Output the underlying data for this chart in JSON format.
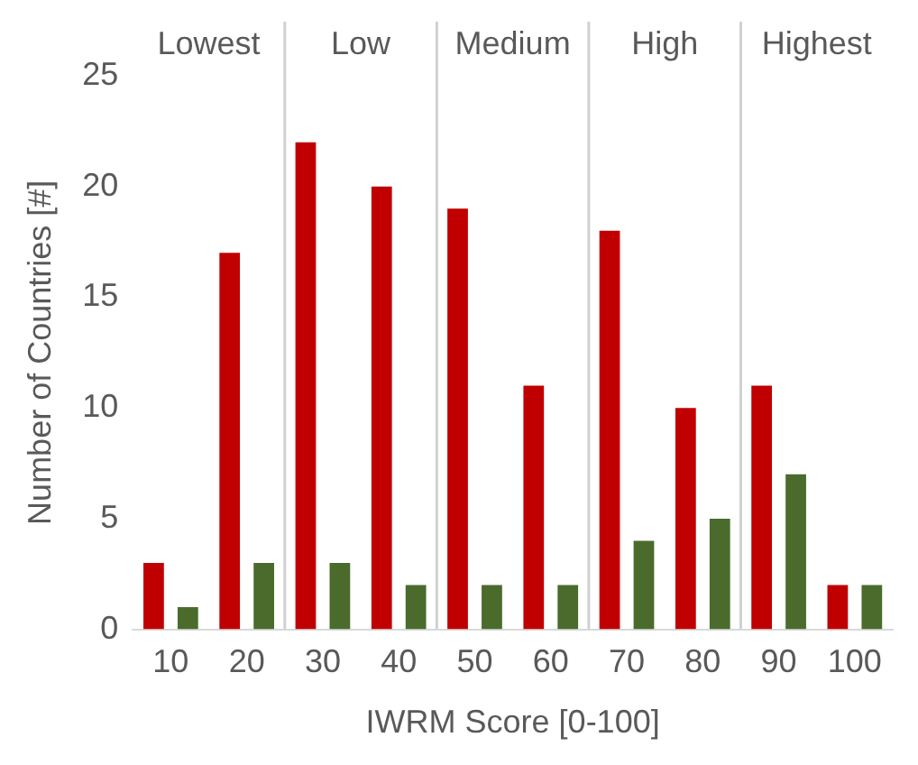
{
  "chart_data": {
    "type": "bar",
    "xlabel": "IWRM Score [0-100]",
    "ylabel": "Number of Countries [#]",
    "categories": [
      "10",
      "20",
      "30",
      "40",
      "50",
      "60",
      "70",
      "80",
      "90",
      "100"
    ],
    "series": [
      {
        "color": "#c00000",
        "values": [
          3,
          17,
          22,
          20,
          19,
          11,
          18,
          10,
          11,
          2
        ]
      },
      {
        "color": "#4a6b2c",
        "values": [
          1,
          3,
          3,
          2,
          2,
          2,
          4,
          5,
          7,
          2
        ]
      }
    ],
    "ylim": [
      0,
      25
    ],
    "yticks": [
      0,
      5,
      10,
      15,
      20,
      25
    ],
    "grid": false,
    "legend": false,
    "annotations": [
      "Lowest",
      "Low",
      "Medium",
      "High",
      "Highest"
    ]
  }
}
